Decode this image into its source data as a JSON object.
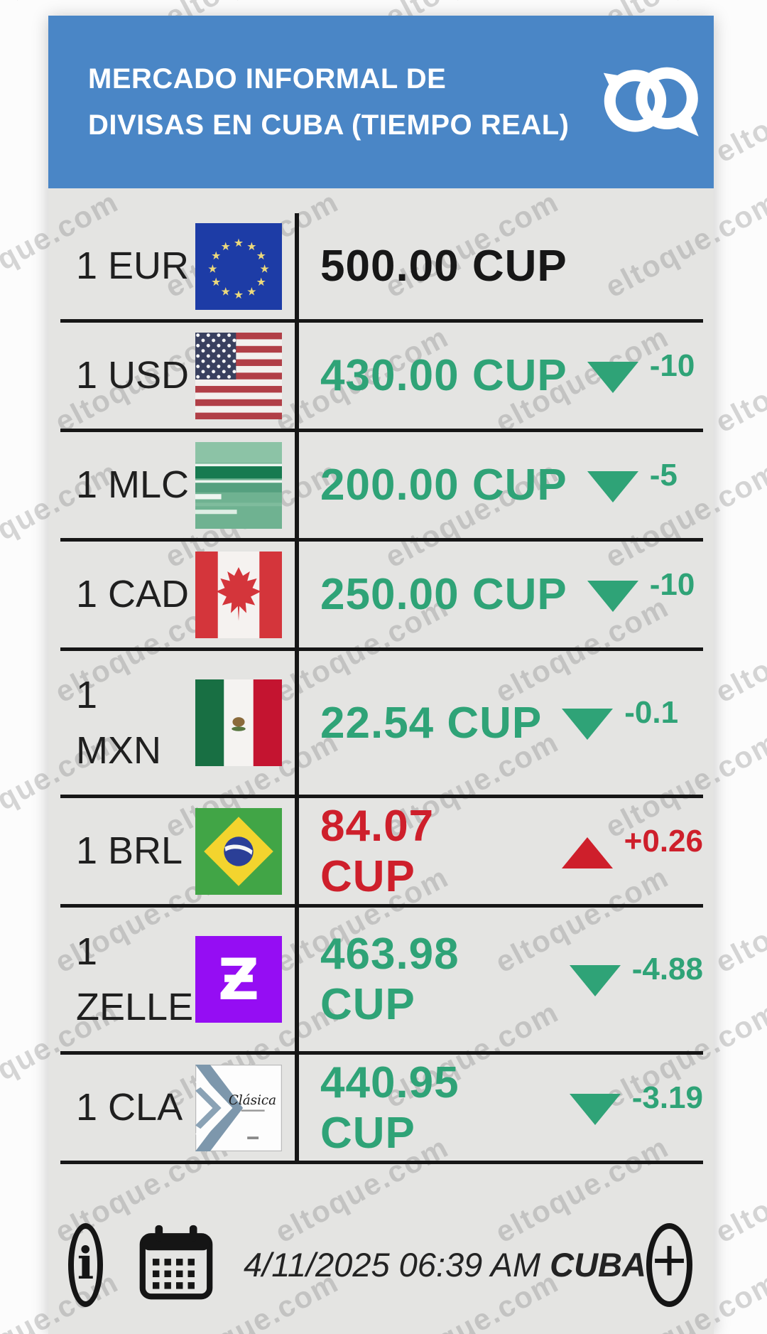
{
  "header": {
    "title_lines": [
      "MERCADO INFORMAL DE",
      "DIVISAS EN CUBA (TIEMPO REAL)"
    ],
    "background_color": "#4a86c6",
    "logo": "eltoque-logo"
  },
  "watermark": {
    "text": "eltoque.com"
  },
  "colors": {
    "up_red": "#ce1f2b",
    "down_green": "#2fa377",
    "neutral_black": "#171717",
    "header_blue": "#4a86c6",
    "body_bg": "#e4e4e2",
    "zelle_purple": "#950df3"
  },
  "rates": [
    {
      "label": "1 EUR",
      "currency": "EUR",
      "flag": "eu-flag",
      "value": "500.00 CUP",
      "trend": "none",
      "delta": ""
    },
    {
      "label": "1 USD",
      "currency": "USD",
      "flag": "us-flag",
      "value": "430.00 CUP",
      "trend": "down",
      "delta": "-10"
    },
    {
      "label": "1 MLC",
      "currency": "MLC",
      "flag": "mlc-card",
      "value": "200.00 CUP",
      "trend": "down",
      "delta": "-5"
    },
    {
      "label": "1 CAD",
      "currency": "CAD",
      "flag": "canada-flag",
      "value": "250.00 CUP",
      "trend": "down",
      "delta": "-10"
    },
    {
      "label": "1\nMXN",
      "currency": "MXN",
      "flag": "mexico-flag",
      "value": "22.54 CUP",
      "trend": "down",
      "delta": "-0.1"
    },
    {
      "label": "1 BRL",
      "currency": "BRL",
      "flag": "brazil-flag",
      "value": "84.07 CUP",
      "trend": "up",
      "delta": "+0.26"
    },
    {
      "label": "1\nZELLE",
      "currency": "ZELLE",
      "flag": "zelle-logo",
      "value": "463.98 CUP",
      "trend": "down",
      "delta": "-4.88"
    },
    {
      "label": "1 CLA",
      "currency": "CLA",
      "flag": "clasica-card",
      "value": "440.95 CUP",
      "trend": "down",
      "delta": "-3.19"
    }
  ],
  "footer": {
    "datetime": "4/11/2025 06:39 AM ",
    "region": "CUBA",
    "info_glyph": "i",
    "plus_glyph": "+"
  },
  "icons": {
    "zelle_glyph": "Ƶ",
    "clasica_label": "Clásica"
  }
}
